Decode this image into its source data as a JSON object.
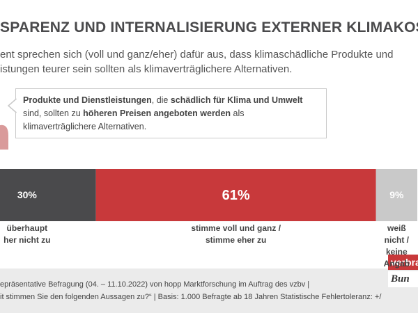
{
  "chart_data": {
    "type": "stacked-bar",
    "title": "SPARENZ UND INTERNALISIERUNG EXTERNER KLIMAKOS",
    "subtitle": [
      "ent sprechen sich (voll und ganz/eher) dafür aus, dass klimaschädliche Produkte und",
      "istungen teurer sein sollten als klimaverträglichere Alternativen."
    ],
    "statement": [
      "Produkte und Dienstleistungen",
      ", die ",
      "schädlich für Klima und Umwelt",
      " sind, sollten zu ",
      "höheren Preisen angeboten werden",
      " als klimaverträglichere Alternativen."
    ],
    "series": [
      {
        "name": "überhaupt\nher nicht zu",
        "color": "#4a4a4c",
        "values": [
          30
        ],
        "value_labels": [
          "30%"
        ]
      },
      {
        "name": "stimme voll und ganz /\nstimme eher zu",
        "color": "#c8393b",
        "values": [
          61
        ],
        "value_labels": [
          "61%"
        ]
      },
      {
        "name": "weiß nicht /\nkeine Angab",
        "color": "#c9c9c9",
        "values": [
          9
        ],
        "value_labels": [
          "9%"
        ]
      }
    ],
    "footer": [
      "epräsentative Befragung (04. – 11.10.2022) von hopp Marktforschung im Auftrag des vzbv |",
      "it stimmen Sie den folgenden Aussagen zu?“ | Basis: 1.000 Befragte ab 18 Jahren Statistische Fehlertoleranz: +/"
    ],
    "logo": [
      "verbra",
      "Bun"
    ]
  }
}
